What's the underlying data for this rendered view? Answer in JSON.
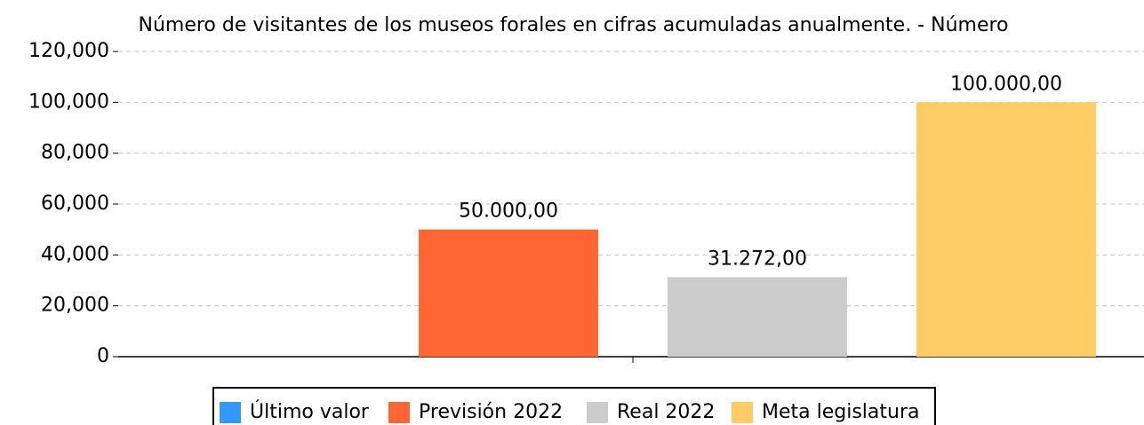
{
  "chart_data": {
    "type": "bar",
    "title": "Número de visitantes de los museos forales en cifras acumuladas anualmente. - Número",
    "categories": [
      null
    ],
    "series": [
      {
        "name": "Último valor",
        "color": "#3399ff",
        "values": [
          null
        ],
        "value_labels": [
          null
        ]
      },
      {
        "name": "Previsión 2022",
        "color": "#ff6633",
        "values": [
          50000
        ],
        "value_labels": [
          "50.000,00"
        ]
      },
      {
        "name": "Real 2022",
        "color": "#cccccc",
        "values": [
          31272
        ],
        "value_labels": [
          "31.272,00"
        ]
      },
      {
        "name": "Meta legislatura",
        "color": "#ffcc66",
        "values": [
          100000
        ],
        "value_labels": [
          "100.000,00"
        ]
      }
    ],
    "ylim": [
      0,
      120000
    ],
    "yticks": [
      0,
      {
        "value": 20000,
        "label": "20,000"
      },
      {
        "value": 40000,
        "label": "40,000"
      },
      {
        "value": 60000,
        "label": "60,000"
      },
      {
        "value": 80000,
        "label": "80,000"
      },
      {
        "value": 100000,
        "label": "100,000"
      },
      {
        "value": 120000,
        "label": "120,000"
      }
    ],
    "grid": true
  }
}
